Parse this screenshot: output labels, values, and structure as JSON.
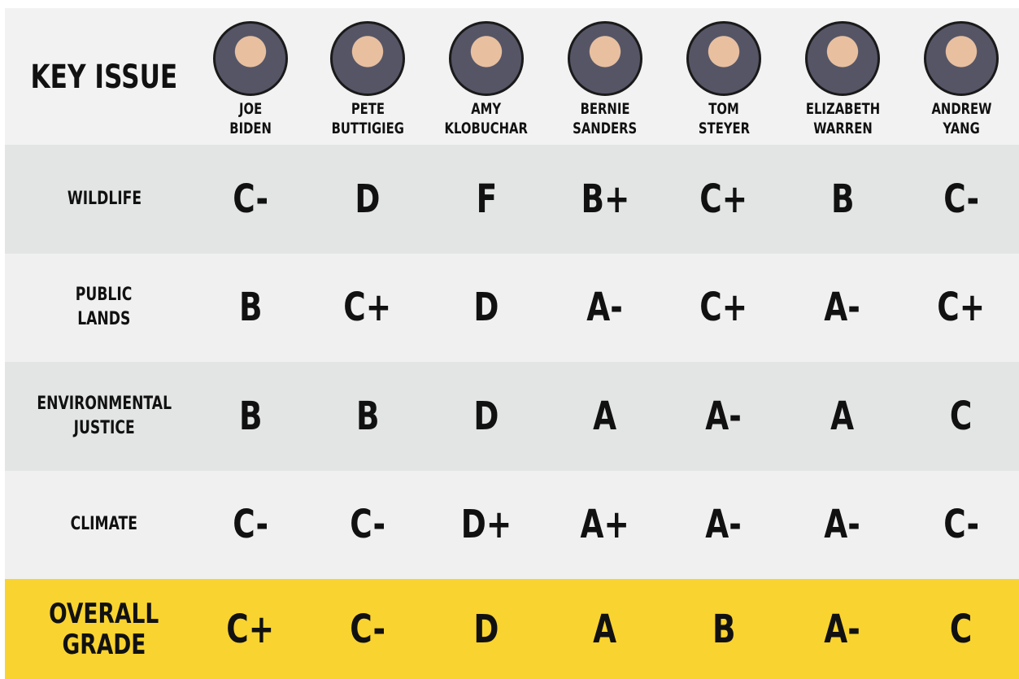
{
  "header": {
    "title": "KEY ISSUE",
    "candidates": [
      {
        "first": "JOE",
        "last": "BIDEN"
      },
      {
        "first": "PETE",
        "last": "BUTTIGIEG"
      },
      {
        "first": "AMY",
        "last": "KLOBUCHAR"
      },
      {
        "first": "BERNIE",
        "last": "SANDERS"
      },
      {
        "first": "TOM",
        "last": "STEYER"
      },
      {
        "first": "ELIZABETH",
        "last": "WARREN"
      },
      {
        "first": "ANDREW",
        "last": "YANG"
      }
    ]
  },
  "rows": [
    {
      "issue": [
        "WILDLIFE"
      ],
      "grades": [
        "C-",
        "D",
        "F",
        "B+",
        "C+",
        "B",
        "C-"
      ]
    },
    {
      "issue": [
        "PUBLIC",
        "LANDS"
      ],
      "grades": [
        "B",
        "C+",
        "D",
        "A-",
        "C+",
        "A-",
        "C+"
      ]
    },
    {
      "issue": [
        "ENVIRONMENTAL",
        "JUSTICE"
      ],
      "grades": [
        "B",
        "B",
        "D",
        "A",
        "A-",
        "A",
        "C"
      ]
    },
    {
      "issue": [
        "CLIMATE"
      ],
      "grades": [
        "C-",
        "C-",
        "D+",
        "A+",
        "A-",
        "A-",
        "C-"
      ]
    }
  ],
  "overall": {
    "label": [
      "OVERALL",
      "GRADE"
    ],
    "grades": [
      "C+",
      "C-",
      "D",
      "A",
      "B",
      "A-",
      "C"
    ]
  }
}
